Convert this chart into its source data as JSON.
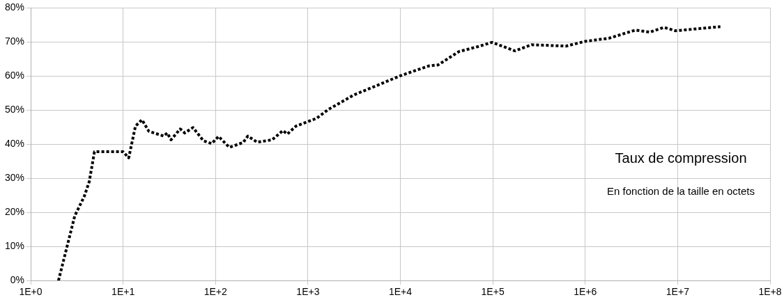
{
  "chart_data": {
    "type": "line",
    "log": "x",
    "grid": true,
    "legend": false,
    "marker": "none",
    "line_style": "dotted",
    "annotations": [
      "Taux de compression",
      "En fonction de la taille en octets"
    ],
    "xlim": [
      1,
      100000000
    ],
    "xticks": [
      {
        "value": 1,
        "label": "1E+0"
      },
      {
        "value": 10,
        "label": "1E+1"
      },
      {
        "value": 100,
        "label": "1E+2"
      },
      {
        "value": 1000,
        "label": "1E+3"
      },
      {
        "value": 10000,
        "label": "1E+4"
      },
      {
        "value": 100000,
        "label": "1E+5"
      },
      {
        "value": 1000000,
        "label": "1E+6"
      },
      {
        "value": 10000000,
        "label": "1E+7"
      },
      {
        "value": 100000000,
        "label": "1E+8"
      }
    ],
    "ylim": [
      0,
      80
    ],
    "yticks": [
      {
        "value": 0,
        "label": "0%"
      },
      {
        "value": 10,
        "label": "10%"
      },
      {
        "value": 20,
        "label": "20%"
      },
      {
        "value": 30,
        "label": "30%"
      },
      {
        "value": 40,
        "label": "40%"
      },
      {
        "value": 50,
        "label": "50%"
      },
      {
        "value": 60,
        "label": "60%"
      },
      {
        "value": 70,
        "label": "70%"
      },
      {
        "value": 80,
        "label": "80%"
      }
    ],
    "x": [
      2,
      3,
      3.8,
      4.3,
      4.9,
      10,
      11.5,
      13.6,
      16,
      19,
      27.5,
      30,
      33,
      41.5,
      46.5,
      57,
      74,
      91,
      108,
      141,
      199,
      224,
      282,
      410,
      535,
      600,
      740,
      1240,
      1660,
      3160,
      5300,
      10000,
      20400,
      25700,
      43000,
      68000,
      98000,
      174000,
      262000,
      620000,
      1000000,
      1800000,
      3500000,
      5000000,
      7100000,
      9500000,
      29000000
    ],
    "series": [
      {
        "color": "#000000",
        "values": [
          0,
          19,
          24.7,
          29,
          37.8,
          37.8,
          36,
          45.3,
          47.2,
          43.8,
          42.4,
          43.3,
          41.3,
          44.5,
          43.3,
          44.9,
          41,
          40.2,
          42.3,
          39.1,
          40.5,
          42.4,
          40.6,
          41.3,
          44,
          43,
          45.3,
          47.6,
          50.2,
          54.5,
          57,
          60.1,
          63,
          63.3,
          67.2,
          68.6,
          69.9,
          67.4,
          69.2,
          68.8,
          70.2,
          71.1,
          73.5,
          72.9,
          74.3,
          73.3,
          74.5
        ]
      }
    ]
  }
}
